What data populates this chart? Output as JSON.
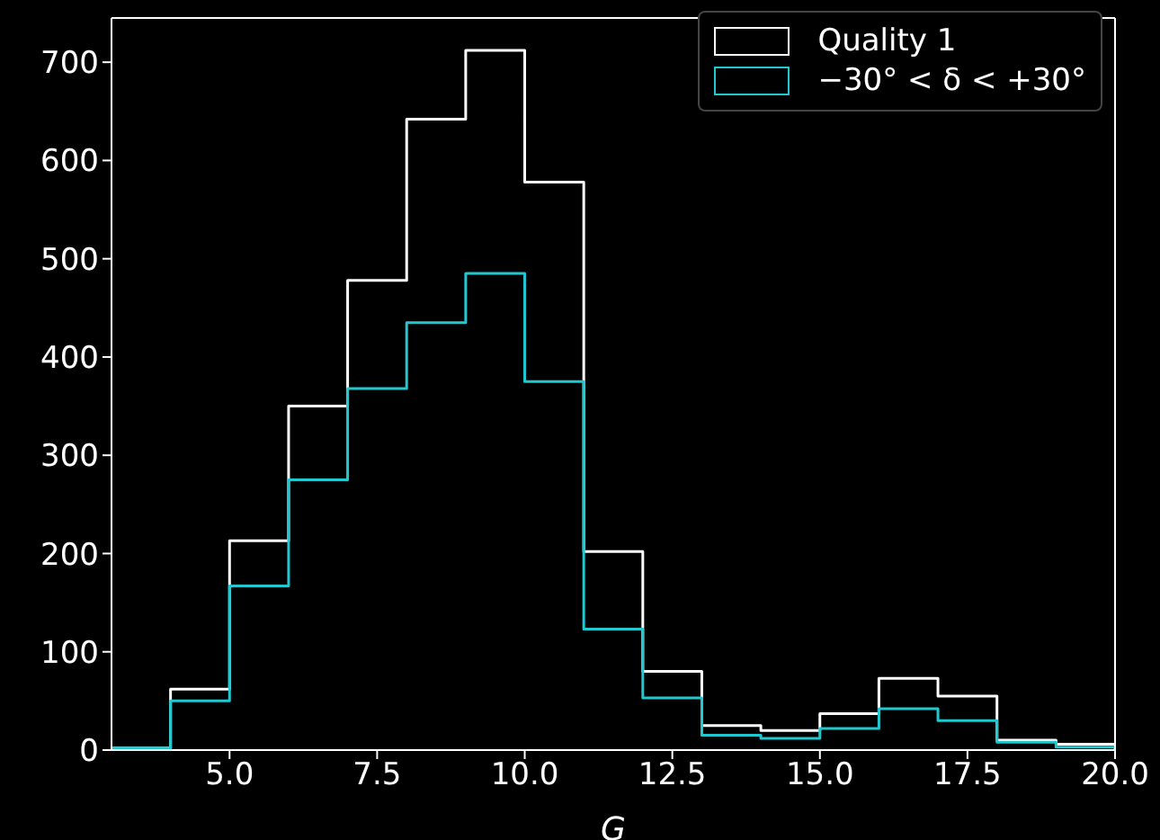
{
  "chart_data": {
    "type": "histogram",
    "xlabel": "G",
    "bins": [
      3,
      4,
      5,
      6,
      7,
      8,
      9,
      10,
      11,
      12,
      13,
      14,
      15,
      16,
      17,
      18,
      19,
      20
    ],
    "series": [
      {
        "name": "Quality 1",
        "color": "#ffffff",
        "values": [
          2,
          62,
          213,
          350,
          478,
          642,
          712,
          578,
          202,
          80,
          25,
          20,
          37,
          73,
          55,
          10,
          6
        ]
      },
      {
        "name": "−30° < δ < +30°",
        "color": "#22c8d0",
        "values": [
          2,
          50,
          167,
          275,
          368,
          435,
          485,
          375,
          123,
          53,
          15,
          12,
          22,
          42,
          30,
          8,
          3
        ]
      }
    ],
    "xlim": [
      3,
      20
    ],
    "ylim": [
      0,
      745
    ],
    "xticks": [
      {
        "value": 5,
        "label": "5.0"
      },
      {
        "value": 7.5,
        "label": "7.5"
      },
      {
        "value": 10,
        "label": "10.0"
      },
      {
        "value": 12.5,
        "label": "12.5"
      },
      {
        "value": 15,
        "label": "15.0"
      },
      {
        "value": 17.5,
        "label": "17.5"
      },
      {
        "value": 20,
        "label": "20.0"
      }
    ],
    "yticks": [
      0,
      100,
      200,
      300,
      400,
      500,
      600,
      700
    ],
    "legend": "top right",
    "grid": false
  }
}
